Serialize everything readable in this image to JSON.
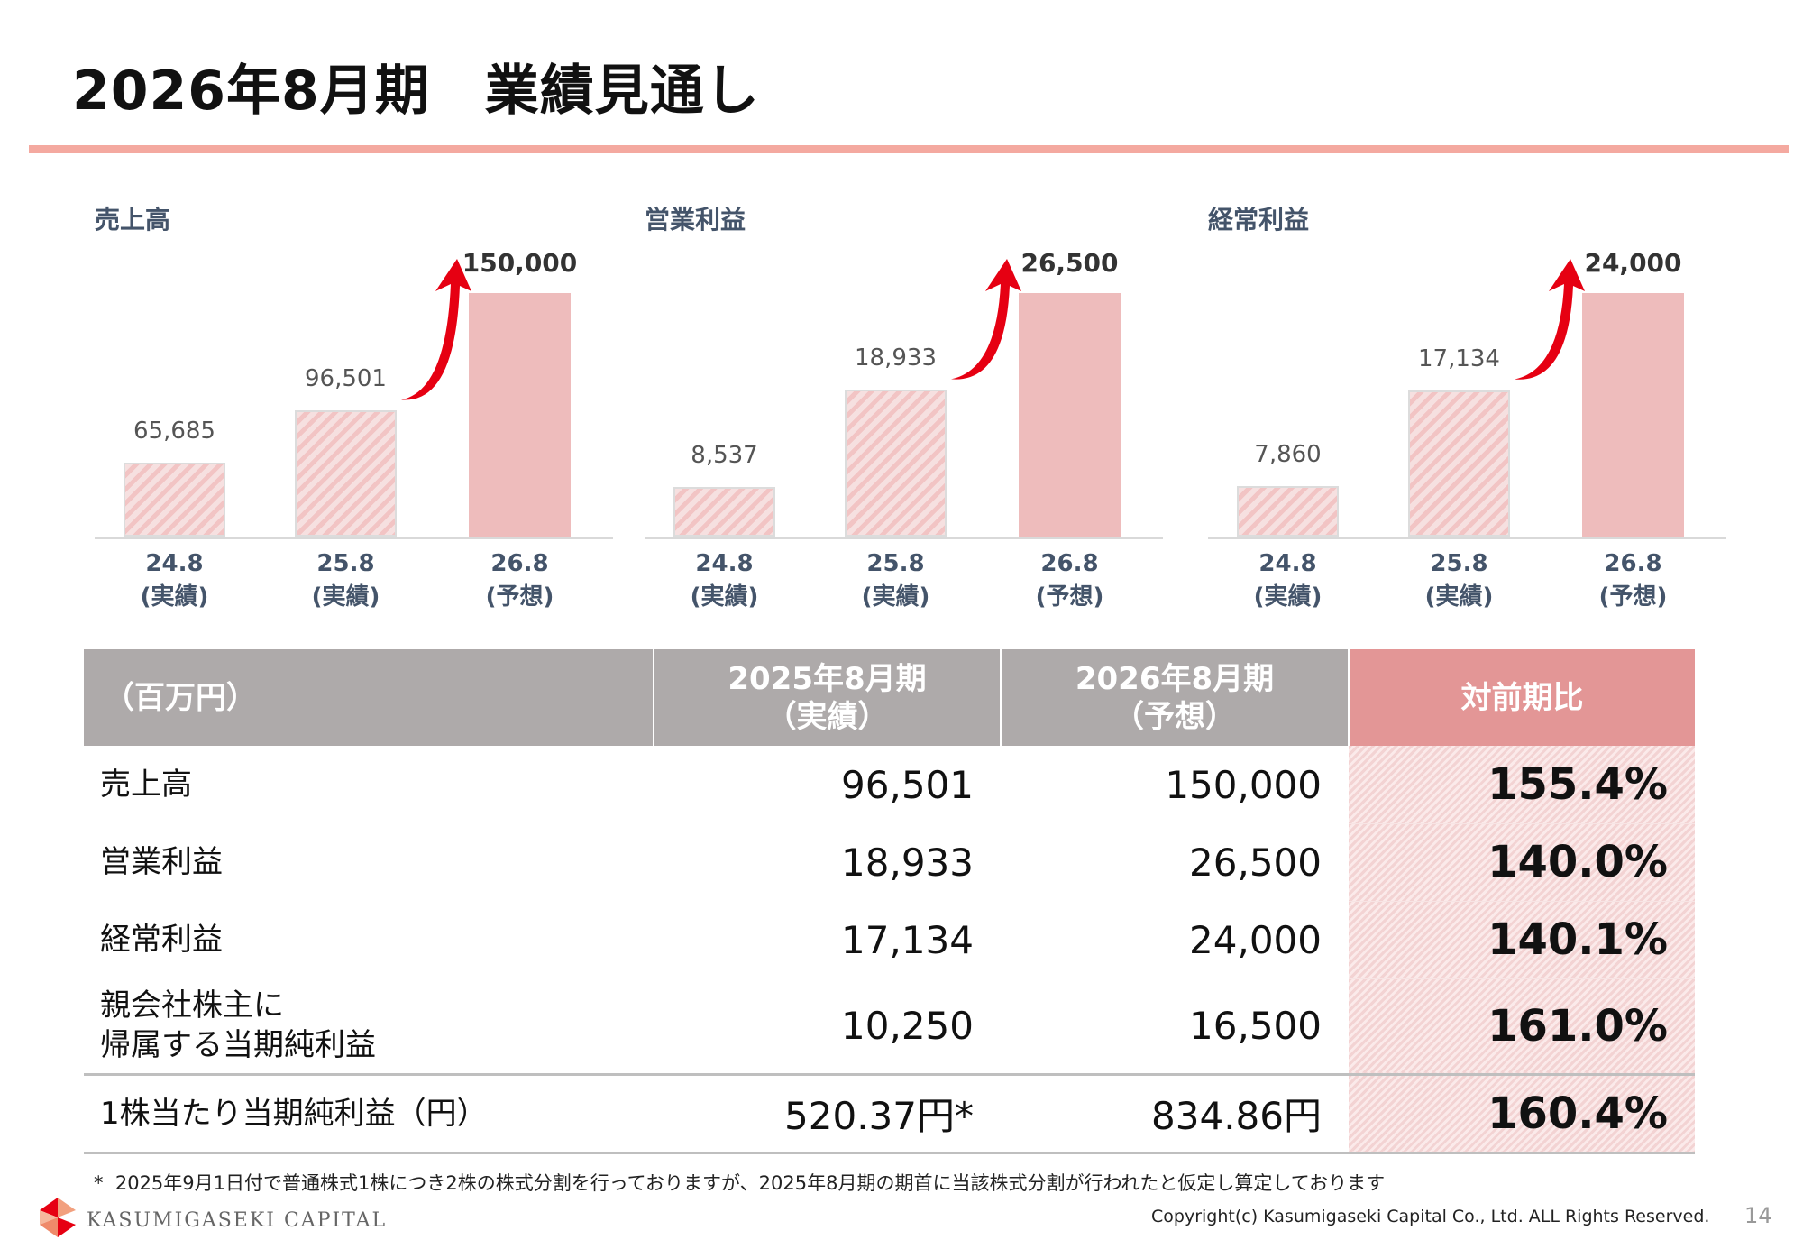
{
  "title": "2026年8月期　業績見通し",
  "chart_data": [
    {
      "type": "bar",
      "title": "売上高",
      "categories": [
        "24.8",
        "25.8",
        "26.8"
      ],
      "category_notes": [
        "(実績)",
        "(実績)",
        "(予想)"
      ],
      "values": [
        65685,
        96501,
        150000
      ],
      "value_labels": [
        "65,685",
        "96,501",
        "150,000"
      ],
      "styles": [
        "actual",
        "actual",
        "forecast"
      ],
      "ylim": [
        0,
        150000
      ]
    },
    {
      "type": "bar",
      "title": "営業利益",
      "categories": [
        "24.8",
        "25.8",
        "26.8"
      ],
      "category_notes": [
        "(実績)",
        "(実績)",
        "(予想)"
      ],
      "values": [
        8537,
        18933,
        26500
      ],
      "value_labels": [
        "8,537",
        "18,933",
        "26,500"
      ],
      "styles": [
        "actual",
        "actual",
        "forecast"
      ],
      "ylim": [
        0,
        26500
      ]
    },
    {
      "type": "bar",
      "title": "経常利益",
      "categories": [
        "24.8",
        "25.8",
        "26.8"
      ],
      "category_notes": [
        "(実績)",
        "(実績)",
        "(予想)"
      ],
      "values": [
        7860,
        17134,
        24000
      ],
      "value_labels": [
        "7,860",
        "17,134",
        "24,000"
      ],
      "styles": [
        "actual",
        "actual",
        "forecast"
      ],
      "ylim": [
        0,
        24000
      ]
    }
  ],
  "table": {
    "headers": [
      "（百万円）",
      "2025年8月期\n（実績）",
      "2026年8月期\n（予想）",
      "対前期比"
    ],
    "rows": [
      {
        "label": "売上高",
        "prev": "96,501",
        "next": "150,000",
        "ratio": "155.4%"
      },
      {
        "label": "営業利益",
        "prev": "18,933",
        "next": "26,500",
        "ratio": "140.0%"
      },
      {
        "label": "経常利益",
        "prev": "17,134",
        "next": "24,000",
        "ratio": "140.1%"
      },
      {
        "label": "親会社株主に\n帰属する当期純利益",
        "prev": "10,250",
        "next": "16,500",
        "ratio": "161.0%"
      },
      {
        "label": "1株当たり当期純利益（円）",
        "prev": "520.37円*",
        "next": "834.86円",
        "ratio": "160.4%"
      }
    ]
  },
  "footnote": "*  2025年9月1日付で普通株式1株につき2株の株式分割を行っておりますが、2025年8月期の期首に当該株式分割が行われたと仮定し算定しております",
  "footer": {
    "company": "KASUMIGASEKI CAPITAL",
    "copyright": "Copyright(c) Kasumigaseki Capital Co., Ltd. ALL Rights Reserved.",
    "page": "14"
  },
  "colors": {
    "accent_rule": "#f4a9a0",
    "header_gray": "#aeaaaa",
    "header_ratio": "#e39696",
    "arrow": "#e60012"
  }
}
